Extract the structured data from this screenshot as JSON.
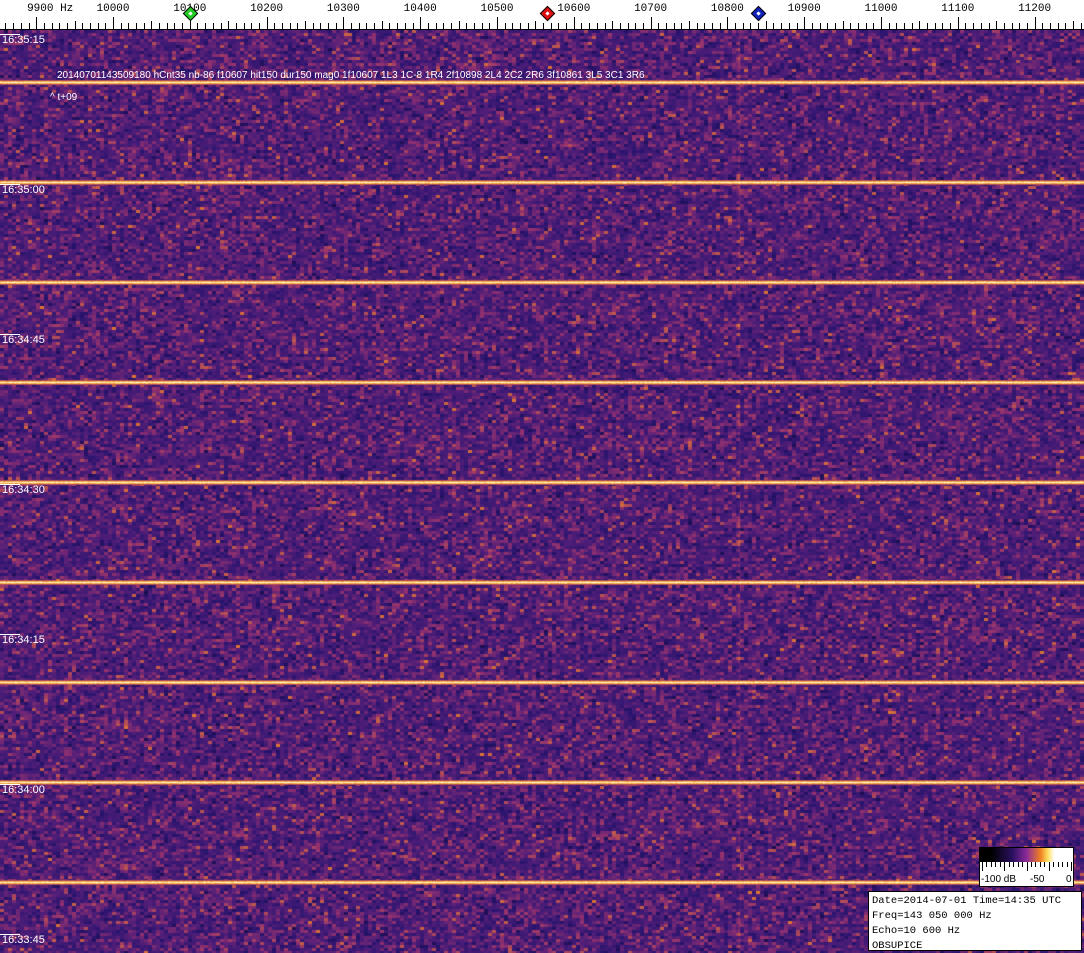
{
  "chart_data": {
    "type": "heatmap",
    "title": "",
    "x_axis": {
      "unit_label": "Hz",
      "ticks": [
        9900,
        10000,
        10100,
        10200,
        10300,
        10400,
        10500,
        10600,
        10700,
        10800,
        10900,
        11000,
        11100,
        11200
      ],
      "tick_labels": [
        "9900 Hz",
        "10000",
        "10100",
        "10200",
        "10300",
        "10400",
        "10500",
        "10600",
        "10700",
        "10800",
        "10900",
        "11000",
        "11100",
        "11200"
      ],
      "range": [
        9850,
        11265
      ]
    },
    "y_axis": {
      "tick_labels": [
        "16:35:15",
        "16:35:00",
        "16:34:45",
        "16:34:30",
        "16:34:15",
        "16:34:00",
        "16:33:45"
      ],
      "range": [
        "16:35:19",
        "16:33:44"
      ]
    },
    "markers": [
      {
        "freq": 10100,
        "color": "#22cc22"
      },
      {
        "freq": 10565,
        "color": "#dd1111"
      },
      {
        "freq": 10840,
        "color": "#1122bb"
      }
    ],
    "annotations": [
      "20140701143509180 hCnt35 nb-86 f10607 hit150 dur150 mag0 1f10607 1L3 1C-8 1R4 2f10898 2L4 2C2 2R6 3f10861 3L5 3C1 3R6",
      "^ t+09"
    ],
    "colorbar": {
      "tick_labels": [
        "-100 dB",
        "-50",
        "0"
      ],
      "range_db": [
        -100,
        0
      ]
    },
    "colors": {
      "background": "#4a1c78",
      "noise_high": "#e07830",
      "line": "#ffe080"
    }
  },
  "info_box": {
    "line1": "Date=2014-07-01 Time=14:35 UTC",
    "line2": "Freq=143 050 000 Hz",
    "line3": "Echo=10 600 Hz",
    "line4": "OBSUPICE"
  }
}
